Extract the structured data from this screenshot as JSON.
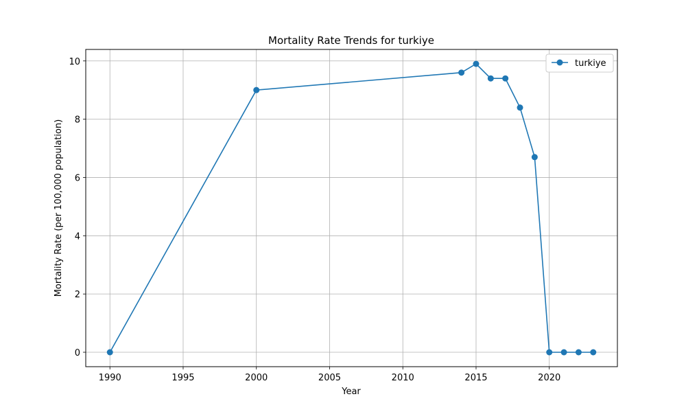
{
  "chart_data": {
    "type": "line",
    "title": "Mortality Rate Trends for turkiye",
    "xlabel": "Year",
    "ylabel": "Mortality Rate (per 100,000 population)",
    "x": [
      1990,
      2000,
      2014,
      2015,
      2016,
      2017,
      2018,
      2019,
      2020,
      2021,
      2022,
      2023
    ],
    "series": [
      {
        "name": "turkiye",
        "color": "#1f77b4",
        "marker": "circle",
        "values": [
          0.0,
          9.0,
          9.6,
          9.9,
          9.4,
          9.4,
          8.4,
          6.7,
          0.0,
          0.0,
          0.0,
          0.0
        ]
      }
    ],
    "xlim": [
      1988.35,
      2024.65
    ],
    "ylim": [
      -0.495,
      10.395
    ],
    "xticks": [
      1990,
      1995,
      2000,
      2005,
      2010,
      2015,
      2020
    ],
    "yticks": [
      0,
      2,
      4,
      6,
      8,
      10
    ],
    "grid": true,
    "legend_position": "top-right"
  }
}
